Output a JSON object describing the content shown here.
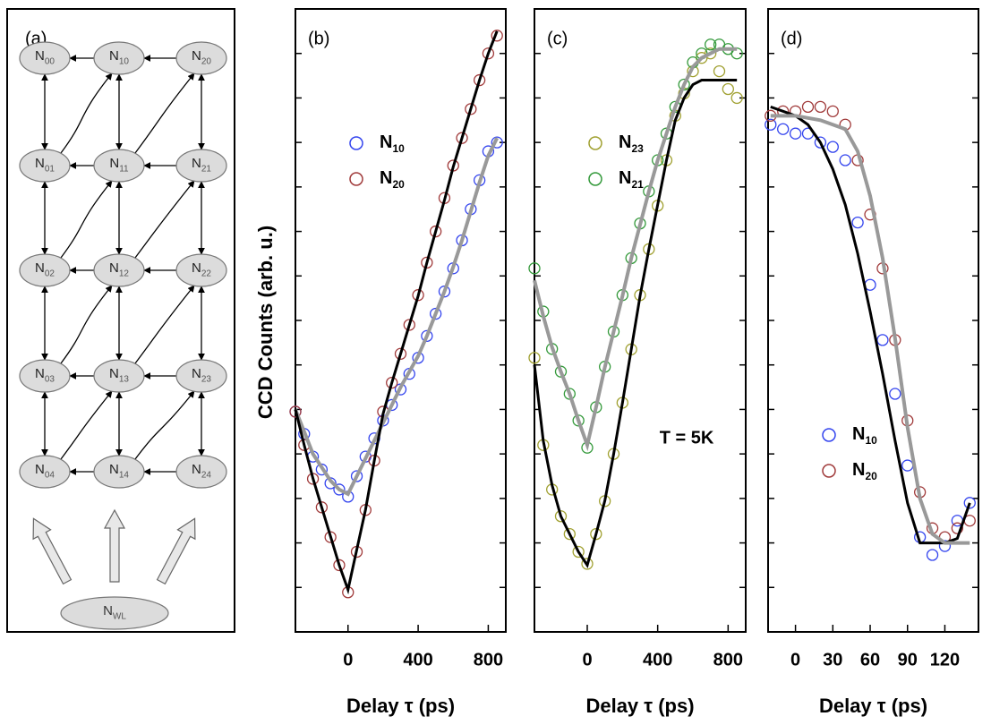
{
  "diagram": {
    "label": "(a)",
    "nodes": [
      [
        "N00",
        "N10",
        "N20"
      ],
      [
        "N01",
        "N11",
        "N21"
      ],
      [
        "N02",
        "N12",
        "N22"
      ],
      [
        "N03",
        "N13",
        "N23"
      ],
      [
        "N04",
        "N14",
        "N24"
      ]
    ],
    "reservoir": "NWL"
  },
  "ylabel": "CCD Counts (arb. u.)",
  "chart_data": [
    {
      "type": "scatter",
      "label": "(b)",
      "xlabel": "Delay τ (ps)",
      "legend": "upper left",
      "xlim": [
        -300,
        900
      ],
      "xticks": [
        0,
        400,
        800
      ],
      "ylim": [
        0,
        14
      ],
      "yticks": [
        1,
        2,
        3,
        4,
        5,
        6,
        7,
        8,
        9,
        10,
        11,
        12,
        13
      ],
      "x": [
        -300,
        -250,
        -200,
        -150,
        -100,
        -50,
        0,
        50,
        100,
        150,
        200,
        250,
        300,
        350,
        400,
        450,
        500,
        550,
        600,
        650,
        700,
        750,
        800,
        850
      ],
      "series": [
        {
          "name": "N10",
          "color": "#3344ee",
          "values": [
            4.95,
            4.45,
            3.94,
            3.65,
            3.34,
            3.2,
            3.04,
            3.5,
            3.94,
            4.35,
            4.75,
            5.1,
            5.45,
            5.8,
            6.16,
            6.65,
            7.15,
            7.65,
            8.17,
            8.8,
            9.5,
            10.15,
            10.8,
            11.0
          ]
        },
        {
          "name": "N20",
          "color": "#a03a3a",
          "values": [
            4.95,
            4.2,
            3.44,
            2.8,
            2.13,
            1.5,
            0.89,
            1.8,
            2.74,
            3.85,
            4.95,
            5.6,
            6.25,
            6.9,
            7.57,
            8.3,
            9.0,
            9.75,
            10.48,
            11.1,
            11.75,
            12.4,
            13.0,
            13.4
          ]
        },
        {
          "line": true,
          "color": "#999999",
          "values": [
            5.0,
            4.5,
            4.0,
            3.7,
            3.4,
            3.2,
            3.1,
            3.5,
            3.9,
            4.3,
            4.7,
            5.1,
            5.5,
            5.85,
            6.2,
            6.65,
            7.15,
            7.65,
            8.2,
            8.8,
            9.45,
            10.1,
            10.7,
            11.1
          ]
        },
        {
          "line": true,
          "color": "#000000",
          "values": [
            5.0,
            4.2,
            3.45,
            2.8,
            2.15,
            1.5,
            0.95,
            1.85,
            2.75,
            3.85,
            4.9,
            5.6,
            6.25,
            6.9,
            7.55,
            8.3,
            9.0,
            9.7,
            10.45,
            11.1,
            11.75,
            12.4,
            13.0,
            13.5
          ]
        }
      ]
    },
    {
      "type": "scatter",
      "label": "(c)",
      "xlabel": "Delay τ (ps)",
      "legend": "upper left",
      "annotation": "T = 5K",
      "xlim": [
        -300,
        900
      ],
      "xticks": [
        0,
        400,
        800
      ],
      "ylim": [
        0,
        14
      ],
      "yticks": [
        1,
        2,
        3,
        4,
        5,
        6,
        7,
        8,
        9,
        10,
        11,
        12,
        13
      ],
      "x": [
        -300,
        -250,
        -200,
        -150,
        -100,
        -50,
        0,
        50,
        100,
        150,
        200,
        250,
        300,
        350,
        400,
        450,
        500,
        550,
        600,
        650,
        700,
        750,
        800,
        850
      ],
      "series": [
        {
          "name": "N23",
          "color": "#a0a030",
          "values": [
            6.16,
            4.2,
            3.2,
            2.6,
            2.2,
            1.8,
            1.53,
            2.2,
            2.94,
            4.0,
            5.15,
            6.35,
            7.57,
            8.6,
            9.58,
            10.6,
            11.6,
            12.1,
            12.6,
            12.9,
            13.0,
            12.6,
            12.2,
            12.0
          ]
        },
        {
          "name": "N21",
          "color": "#33993a",
          "values": [
            8.17,
            7.2,
            6.36,
            5.85,
            5.35,
            4.75,
            4.14,
            5.05,
            5.96,
            6.75,
            7.57,
            8.4,
            9.18,
            9.9,
            10.6,
            11.2,
            11.8,
            12.3,
            12.8,
            13.0,
            13.2,
            13.2,
            13.1,
            13.0
          ]
        },
        {
          "line": true,
          "color": "#000000",
          "values": [
            6.0,
            4.3,
            3.3,
            2.6,
            2.2,
            1.8,
            1.5,
            2.2,
            2.95,
            4.0,
            5.15,
            6.35,
            7.55,
            8.6,
            9.6,
            10.6,
            11.5,
            12.0,
            12.3,
            12.4,
            12.4,
            12.4,
            12.4,
            12.4
          ]
        },
        {
          "line": true,
          "color": "#999999",
          "values": [
            7.9,
            7.1,
            6.4,
            5.85,
            5.35,
            4.75,
            4.2,
            5.05,
            5.95,
            6.75,
            7.55,
            8.4,
            9.15,
            9.9,
            10.6,
            11.2,
            11.8,
            12.3,
            12.7,
            12.9,
            13.0,
            13.1,
            13.1,
            13.1
          ]
        }
      ]
    },
    {
      "type": "scatter",
      "label": "(d)",
      "xlabel": "Delay τ (ps)",
      "legend": "lower left",
      "xlim": [
        -22,
        147
      ],
      "xticks": [
        0,
        30,
        60,
        90,
        120
      ],
      "ylim": [
        0,
        14
      ],
      "yticks": [
        1,
        2,
        3,
        4,
        5,
        6,
        7,
        8,
        9,
        10,
        11,
        12,
        13
      ],
      "x": [
        -20,
        -10,
        0,
        10,
        20,
        30,
        40,
        50,
        60,
        70,
        80,
        90,
        100,
        110,
        120,
        130,
        140
      ],
      "series": [
        {
          "name": "N10",
          "color": "#3344ee",
          "values": [
            11.4,
            11.3,
            11.2,
            11.2,
            11.0,
            10.9,
            10.6,
            9.2,
            7.8,
            6.56,
            5.35,
            3.74,
            2.13,
            1.73,
            1.93,
            2.5,
            2.9
          ]
        },
        {
          "name": "N20",
          "color": "#a03a3a",
          "values": [
            11.6,
            11.7,
            11.7,
            11.8,
            11.8,
            11.7,
            11.4,
            10.6,
            9.38,
            8.17,
            6.56,
            4.75,
            3.14,
            2.33,
            2.13,
            2.33,
            2.5
          ]
        },
        {
          "line": true,
          "color": "#000000",
          "values": [
            11.8,
            11.7,
            11.6,
            11.4,
            11.0,
            10.4,
            9.6,
            8.5,
            7.2,
            5.8,
            4.3,
            2.9,
            2.0,
            2.0,
            2.0,
            2.1,
            2.9
          ]
        },
        {
          "line": true,
          "color": "#999999",
          "values": [
            11.6,
            11.6,
            11.6,
            11.55,
            11.5,
            11.4,
            11.3,
            10.8,
            9.8,
            8.4,
            6.6,
            4.6,
            3.0,
            2.2,
            2.0,
            2.0,
            2.0
          ]
        }
      ]
    }
  ]
}
